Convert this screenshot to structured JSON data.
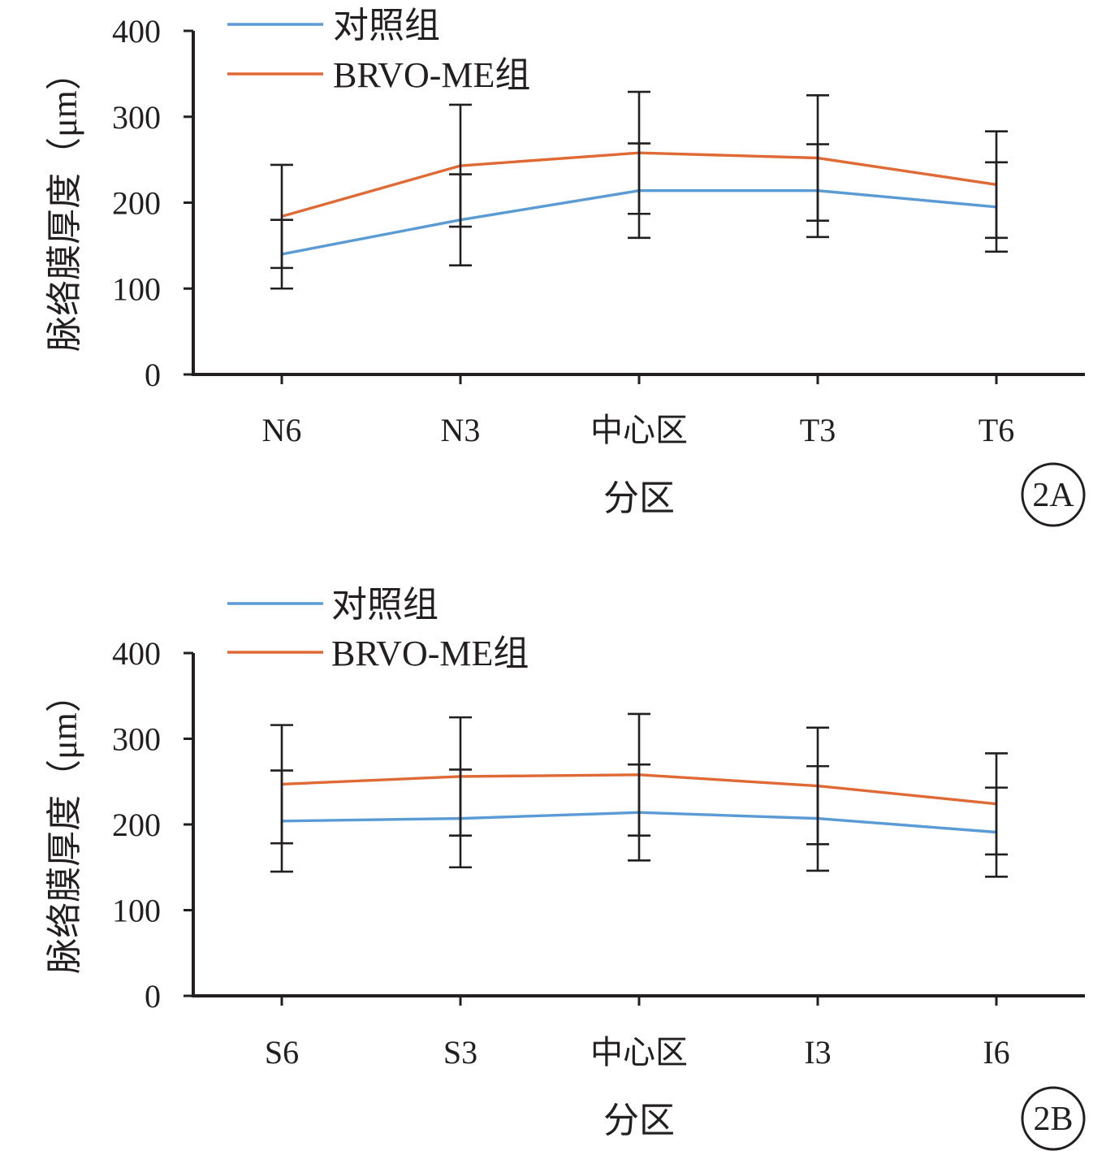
{
  "colors": {
    "control": "#5b9bd5",
    "brvo": "#e06a35",
    "axis": "#231f20"
  },
  "chart_data": [
    {
      "id": "2A",
      "type": "line",
      "panel_tag": "2A",
      "xlabel": "分区",
      "ylabel": "脉络膜厚度（μm）",
      "ylim": [
        0,
        400
      ],
      "yticks": [
        0,
        100,
        200,
        300,
        400
      ],
      "grid": false,
      "legend_position": "top-left",
      "categories": [
        "N6",
        "N3",
        "中心区",
        "T3",
        "T6"
      ],
      "series": [
        {
          "name": "对照组",
          "color": "#5b9bd5",
          "values": [
            140,
            180,
            214,
            214,
            195
          ],
          "error": [
            40,
            53,
            55,
            54,
            52
          ]
        },
        {
          "name": "BRVO-ME组",
          "color": "#e06a35",
          "values": [
            184,
            243,
            258,
            252,
            221
          ],
          "error": [
            60,
            71,
            71,
            73,
            62
          ]
        }
      ]
    },
    {
      "id": "2B",
      "type": "line",
      "panel_tag": "2B",
      "xlabel": "分区",
      "ylabel": "脉络膜厚度（μm）",
      "ylim": [
        0,
        400
      ],
      "yticks": [
        0,
        100,
        200,
        300,
        400
      ],
      "grid": false,
      "legend_position": "top-left",
      "categories": [
        "S6",
        "S3",
        "中心区",
        "I3",
        "I6"
      ],
      "series": [
        {
          "name": "对照组",
          "color": "#5b9bd5",
          "values": [
            204,
            207,
            214,
            207,
            191
          ],
          "error": [
            59,
            57,
            56,
            61,
            52
          ]
        },
        {
          "name": "BRVO-ME组",
          "color": "#e06a35",
          "values": [
            247,
            256,
            258,
            245,
            224
          ],
          "error": [
            69,
            69,
            71,
            68,
            59
          ]
        }
      ]
    }
  ]
}
